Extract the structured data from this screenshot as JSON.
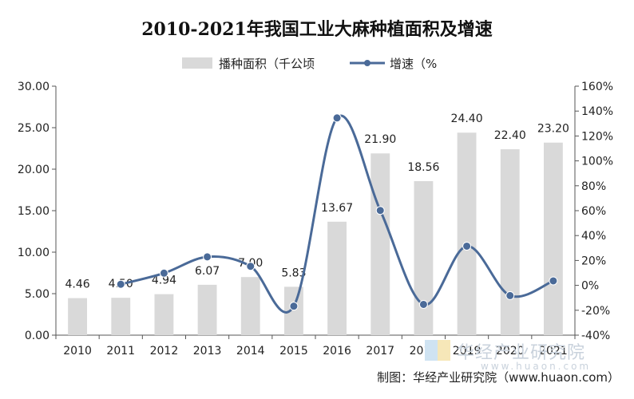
{
  "chart_data": {
    "type": "bar+line",
    "title": "2010-2021年我国工业大麻种植面积及增速",
    "categories": [
      "2010",
      "2011",
      "2012",
      "2013",
      "2014",
      "2015",
      "2016",
      "2017",
      "2018",
      "2019",
      "2020",
      "2021"
    ],
    "series": [
      {
        "name": "播种面积（千公顷",
        "type": "bar",
        "axis": "left",
        "color": "#d9d9d9",
        "values": [
          4.46,
          4.5,
          4.94,
          6.07,
          7.0,
          5.83,
          13.67,
          21.9,
          18.56,
          24.4,
          22.4,
          23.2
        ],
        "labels": [
          "4.46",
          "4.50",
          "4.94",
          "6.07",
          "7.00",
          "5.83",
          "13.67",
          "21.90",
          "18.56",
          "24.40",
          "22.40",
          "23.20"
        ]
      },
      {
        "name": "增速（%",
        "type": "line",
        "axis": "right",
        "color": "#4a6a98",
        "smooth": true,
        "values": [
          null,
          0.9,
          9.8,
          22.9,
          15.3,
          -16.7,
          134.5,
          60.2,
          -15.3,
          31.5,
          -8.2,
          3.6
        ]
      }
    ],
    "y_left": {
      "min": 0,
      "max": 30,
      "ticks": [
        "0.00",
        "5.00",
        "10.00",
        "15.00",
        "20.00",
        "25.00",
        "30.00"
      ]
    },
    "y_right": {
      "min": -40,
      "max": 160,
      "ticks": [
        "-40%",
        "-20%",
        "0%",
        "20%",
        "40%",
        "60%",
        "80%",
        "100%",
        "120%",
        "140%",
        "160%"
      ]
    },
    "legend_position": "top-center",
    "grid": false
  },
  "watermark": {
    "text": "华经产业研究院",
    "url": "www.huaon.com"
  },
  "source": "制图：华经产业研究院（www.huaon.com）"
}
